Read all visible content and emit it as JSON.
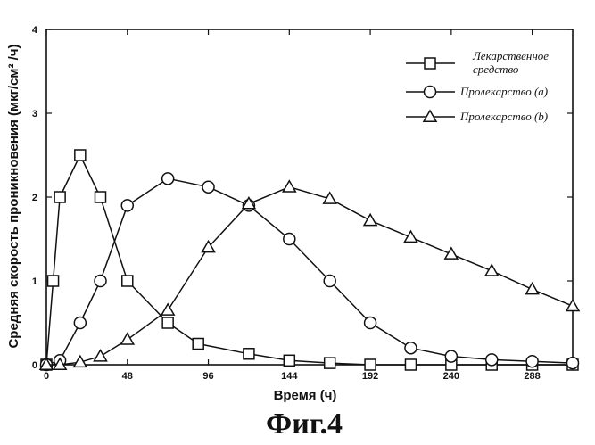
{
  "chart_data": {
    "type": "line",
    "xlabel": "Время (ч)",
    "ylabel": "Средняя скорость проникновения (мкг/см² /ч)",
    "xlim": [
      0,
      312
    ],
    "ylim": [
      0,
      4
    ],
    "x_ticks": [
      "0",
      "48",
      "96",
      "144",
      "192",
      "240",
      "288"
    ],
    "y_ticks": [
      "0",
      "1",
      "2",
      "3",
      "4"
    ],
    "legend_position": "top-right",
    "series": [
      {
        "name": "Лекарственное средство",
        "marker": "square",
        "points": [
          [
            0,
            0
          ],
          [
            4,
            1.0
          ],
          [
            8,
            2.0
          ],
          [
            20,
            2.5
          ],
          [
            32,
            2.0
          ],
          [
            48,
            1.0
          ],
          [
            72,
            0.5
          ],
          [
            90,
            0.25
          ],
          [
            120,
            0.13
          ],
          [
            144,
            0.05
          ],
          [
            168,
            0.02
          ],
          [
            192,
            0.0
          ],
          [
            216,
            0.0
          ],
          [
            240,
            0.0
          ],
          [
            264,
            0.0
          ],
          [
            288,
            0.0
          ],
          [
            312,
            0.0
          ]
        ]
      },
      {
        "name": "Пролекарство (a)",
        "marker": "circle",
        "points": [
          [
            0,
            0
          ],
          [
            8,
            0.05
          ],
          [
            20,
            0.5
          ],
          [
            32,
            1.0
          ],
          [
            48,
            1.9
          ],
          [
            72,
            2.22
          ],
          [
            96,
            2.12
          ],
          [
            120,
            1.9
          ],
          [
            144,
            1.5
          ],
          [
            168,
            1.0
          ],
          [
            192,
            0.5
          ],
          [
            216,
            0.2
          ],
          [
            240,
            0.1
          ],
          [
            264,
            0.06
          ],
          [
            288,
            0.04
          ],
          [
            312,
            0.02
          ]
        ]
      },
      {
        "name": "Пролекарство (b)",
        "marker": "triangle",
        "points": [
          [
            0,
            0
          ],
          [
            8,
            0.0
          ],
          [
            20,
            0.03
          ],
          [
            32,
            0.1
          ],
          [
            48,
            0.3
          ],
          [
            72,
            0.65
          ],
          [
            96,
            1.4
          ],
          [
            120,
            1.92
          ],
          [
            144,
            2.12
          ],
          [
            168,
            1.98
          ],
          [
            192,
            1.72
          ],
          [
            216,
            1.52
          ],
          [
            240,
            1.32
          ],
          [
            264,
            1.12
          ],
          [
            288,
            0.9
          ],
          [
            312,
            0.7
          ]
        ]
      }
    ]
  },
  "legend_items": [
    {
      "label_lines": [
        "Лекарственное",
        "средство"
      ]
    },
    {
      "label_lines": [
        "Пролекарство (a)"
      ]
    },
    {
      "label_lines": [
        "Пролекарство (b)"
      ]
    }
  ],
  "caption": "Фиг.4"
}
